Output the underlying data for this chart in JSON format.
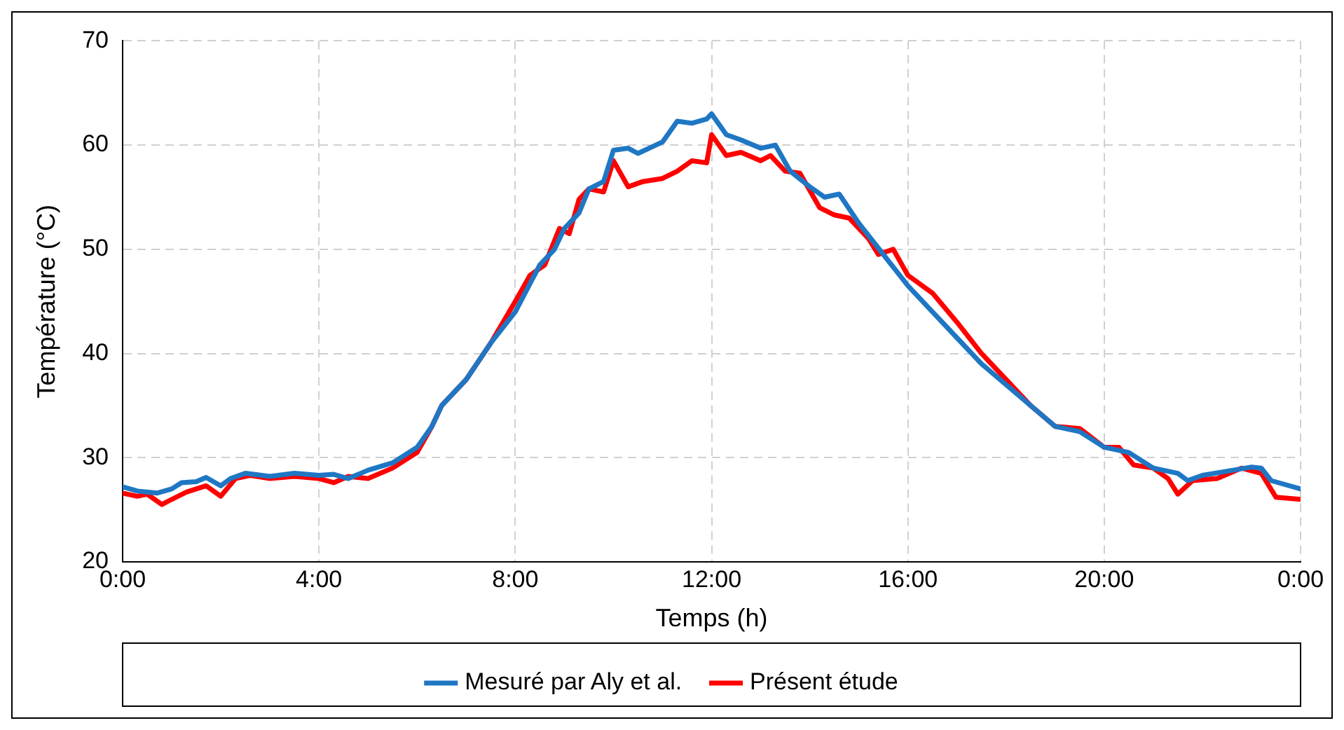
{
  "chart_data": {
    "type": "line",
    "xlabel": "Temps (h)",
    "ylabel": "Température (°C)",
    "xlim": [
      0,
      24
    ],
    "xticks": [
      {
        "value": 0,
        "label": "0:00"
      },
      {
        "value": 4,
        "label": "4:00"
      },
      {
        "value": 8,
        "label": "8:00"
      },
      {
        "value": 12,
        "label": "12:00"
      },
      {
        "value": 16,
        "label": "16:00"
      },
      {
        "value": 20,
        "label": "20:00"
      },
      {
        "value": 24,
        "label": "0:00"
      }
    ],
    "ylim": [
      20,
      70
    ],
    "yticks": [
      20,
      30,
      40,
      50,
      60,
      70
    ],
    "grid": true,
    "legend": "bottom",
    "marker": "none",
    "line_style": "solid",
    "series": [
      {
        "name": "Mesuré par Aly et al.",
        "color": "#1f77c4",
        "x": [
          0,
          0.3,
          0.7,
          1,
          1.2,
          1.5,
          1.7,
          2,
          2.2,
          2.5,
          3,
          3.5,
          4,
          4.3,
          4.6,
          5,
          5.5,
          6,
          6.3,
          6.5,
          7,
          7.5,
          8,
          8.5,
          8.8,
          9,
          9.3,
          9.5,
          9.8,
          10,
          10.3,
          10.5,
          11,
          11.3,
          11.6,
          11.9,
          12,
          12.3,
          12.6,
          13,
          13.3,
          13.6,
          14,
          14.3,
          14.6,
          15,
          15.5,
          16,
          16.5,
          17,
          17.5,
          18,
          18.5,
          19,
          19.5,
          20,
          20.5,
          21,
          21.5,
          21.7,
          22,
          22.5,
          23,
          23.2,
          23.4,
          24
        ],
        "values": [
          27.2,
          26.8,
          26.6,
          27,
          27.6,
          27.7,
          28.1,
          27.3,
          28,
          28.5,
          28.2,
          28.5,
          28.3,
          28.4,
          28,
          28.8,
          29.5,
          31,
          33,
          35,
          37.5,
          41,
          44,
          48.5,
          50,
          52,
          53.5,
          55.8,
          56.5,
          59.5,
          59.7,
          59.2,
          60.3,
          62.3,
          62.1,
          62.5,
          63,
          61,
          60.5,
          59.7,
          60,
          57.5,
          56,
          55,
          55.3,
          52.5,
          49.5,
          46.5,
          44,
          41.5,
          39,
          37,
          35,
          33,
          32.5,
          31,
          30.5,
          29,
          28.5,
          27.8,
          28.3,
          28.7,
          29.1,
          29,
          27.8,
          27
        ]
      },
      {
        "name": "Présent étude",
        "color": "#ff0000",
        "x": [
          0,
          0.3,
          0.5,
          0.8,
          1,
          1.3,
          1.7,
          2,
          2.3,
          2.6,
          3,
          3.5,
          4,
          4.3,
          4.6,
          5,
          5.5,
          6,
          6.3,
          6.5,
          7,
          7.5,
          8,
          8.3,
          8.6,
          8.9,
          9.1,
          9.3,
          9.5,
          9.8,
          10,
          10.3,
          10.6,
          11,
          11.3,
          11.6,
          11.9,
          12,
          12.3,
          12.6,
          13,
          13.2,
          13.5,
          13.8,
          14.2,
          14.5,
          14.8,
          15.2,
          15.4,
          15.7,
          16,
          16.5,
          17,
          17.5,
          18,
          18.5,
          19,
          19.5,
          20,
          20.3,
          20.6,
          21,
          21.3,
          21.5,
          21.8,
          22.3,
          22.8,
          23.2,
          23.5,
          24
        ],
        "values": [
          26.6,
          26.3,
          26.5,
          25.5,
          26,
          26.7,
          27.3,
          26.3,
          28,
          28.3,
          28,
          28.2,
          28,
          27.6,
          28.2,
          28,
          29,
          30.5,
          33,
          35,
          37.5,
          41,
          45,
          47.5,
          48.5,
          52,
          51.5,
          54.8,
          55.8,
          55.5,
          58.5,
          56,
          56.5,
          56.8,
          57.5,
          58.5,
          58.3,
          61,
          59,
          59.3,
          58.5,
          59,
          57.5,
          57.3,
          54,
          53.3,
          53,
          51,
          49.5,
          50,
          47.5,
          45.8,
          43,
          40,
          37.5,
          35,
          33,
          32.8,
          31,
          31,
          29.3,
          29,
          28,
          26.5,
          27.8,
          28,
          29,
          28.5,
          26.2,
          26
        ]
      }
    ]
  }
}
